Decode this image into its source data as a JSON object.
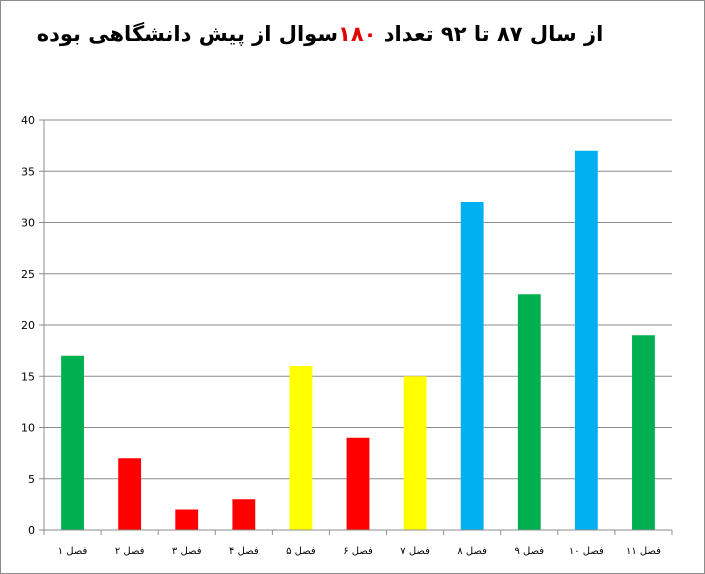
{
  "chart_data": {
    "type": "bar",
    "title": {
      "part1": "از سال ۸۷ تا ۹۲ تعداد ",
      "highlight": "۱۸۰",
      "part2": "سوال از پیش دانشگاهی بوده"
    },
    "highlight_color": "#e00000",
    "categories": [
      "فصل ۱",
      "فصل ۲",
      "فصل ۳",
      "فصل ۴",
      "فصل ۵",
      "فصل ۶",
      "فصل ۷",
      "فصل ۸",
      "فصل ۹",
      "فصل ۱۰",
      "فصل ۱۱"
    ],
    "values": [
      17,
      7,
      2,
      3,
      16,
      9,
      15,
      32,
      23,
      37,
      19
    ],
    "colors": [
      "#00b050",
      "#ff0000",
      "#ff0000",
      "#ff0000",
      "#ffff00",
      "#ff0000",
      "#ffff00",
      "#00b0f0",
      "#00b050",
      "#00b0f0",
      "#00b050"
    ],
    "ylim": [
      0,
      40
    ],
    "yticks": [
      0,
      5,
      10,
      15,
      20,
      25,
      30,
      35,
      40
    ],
    "grid": true,
    "legend": false
  }
}
